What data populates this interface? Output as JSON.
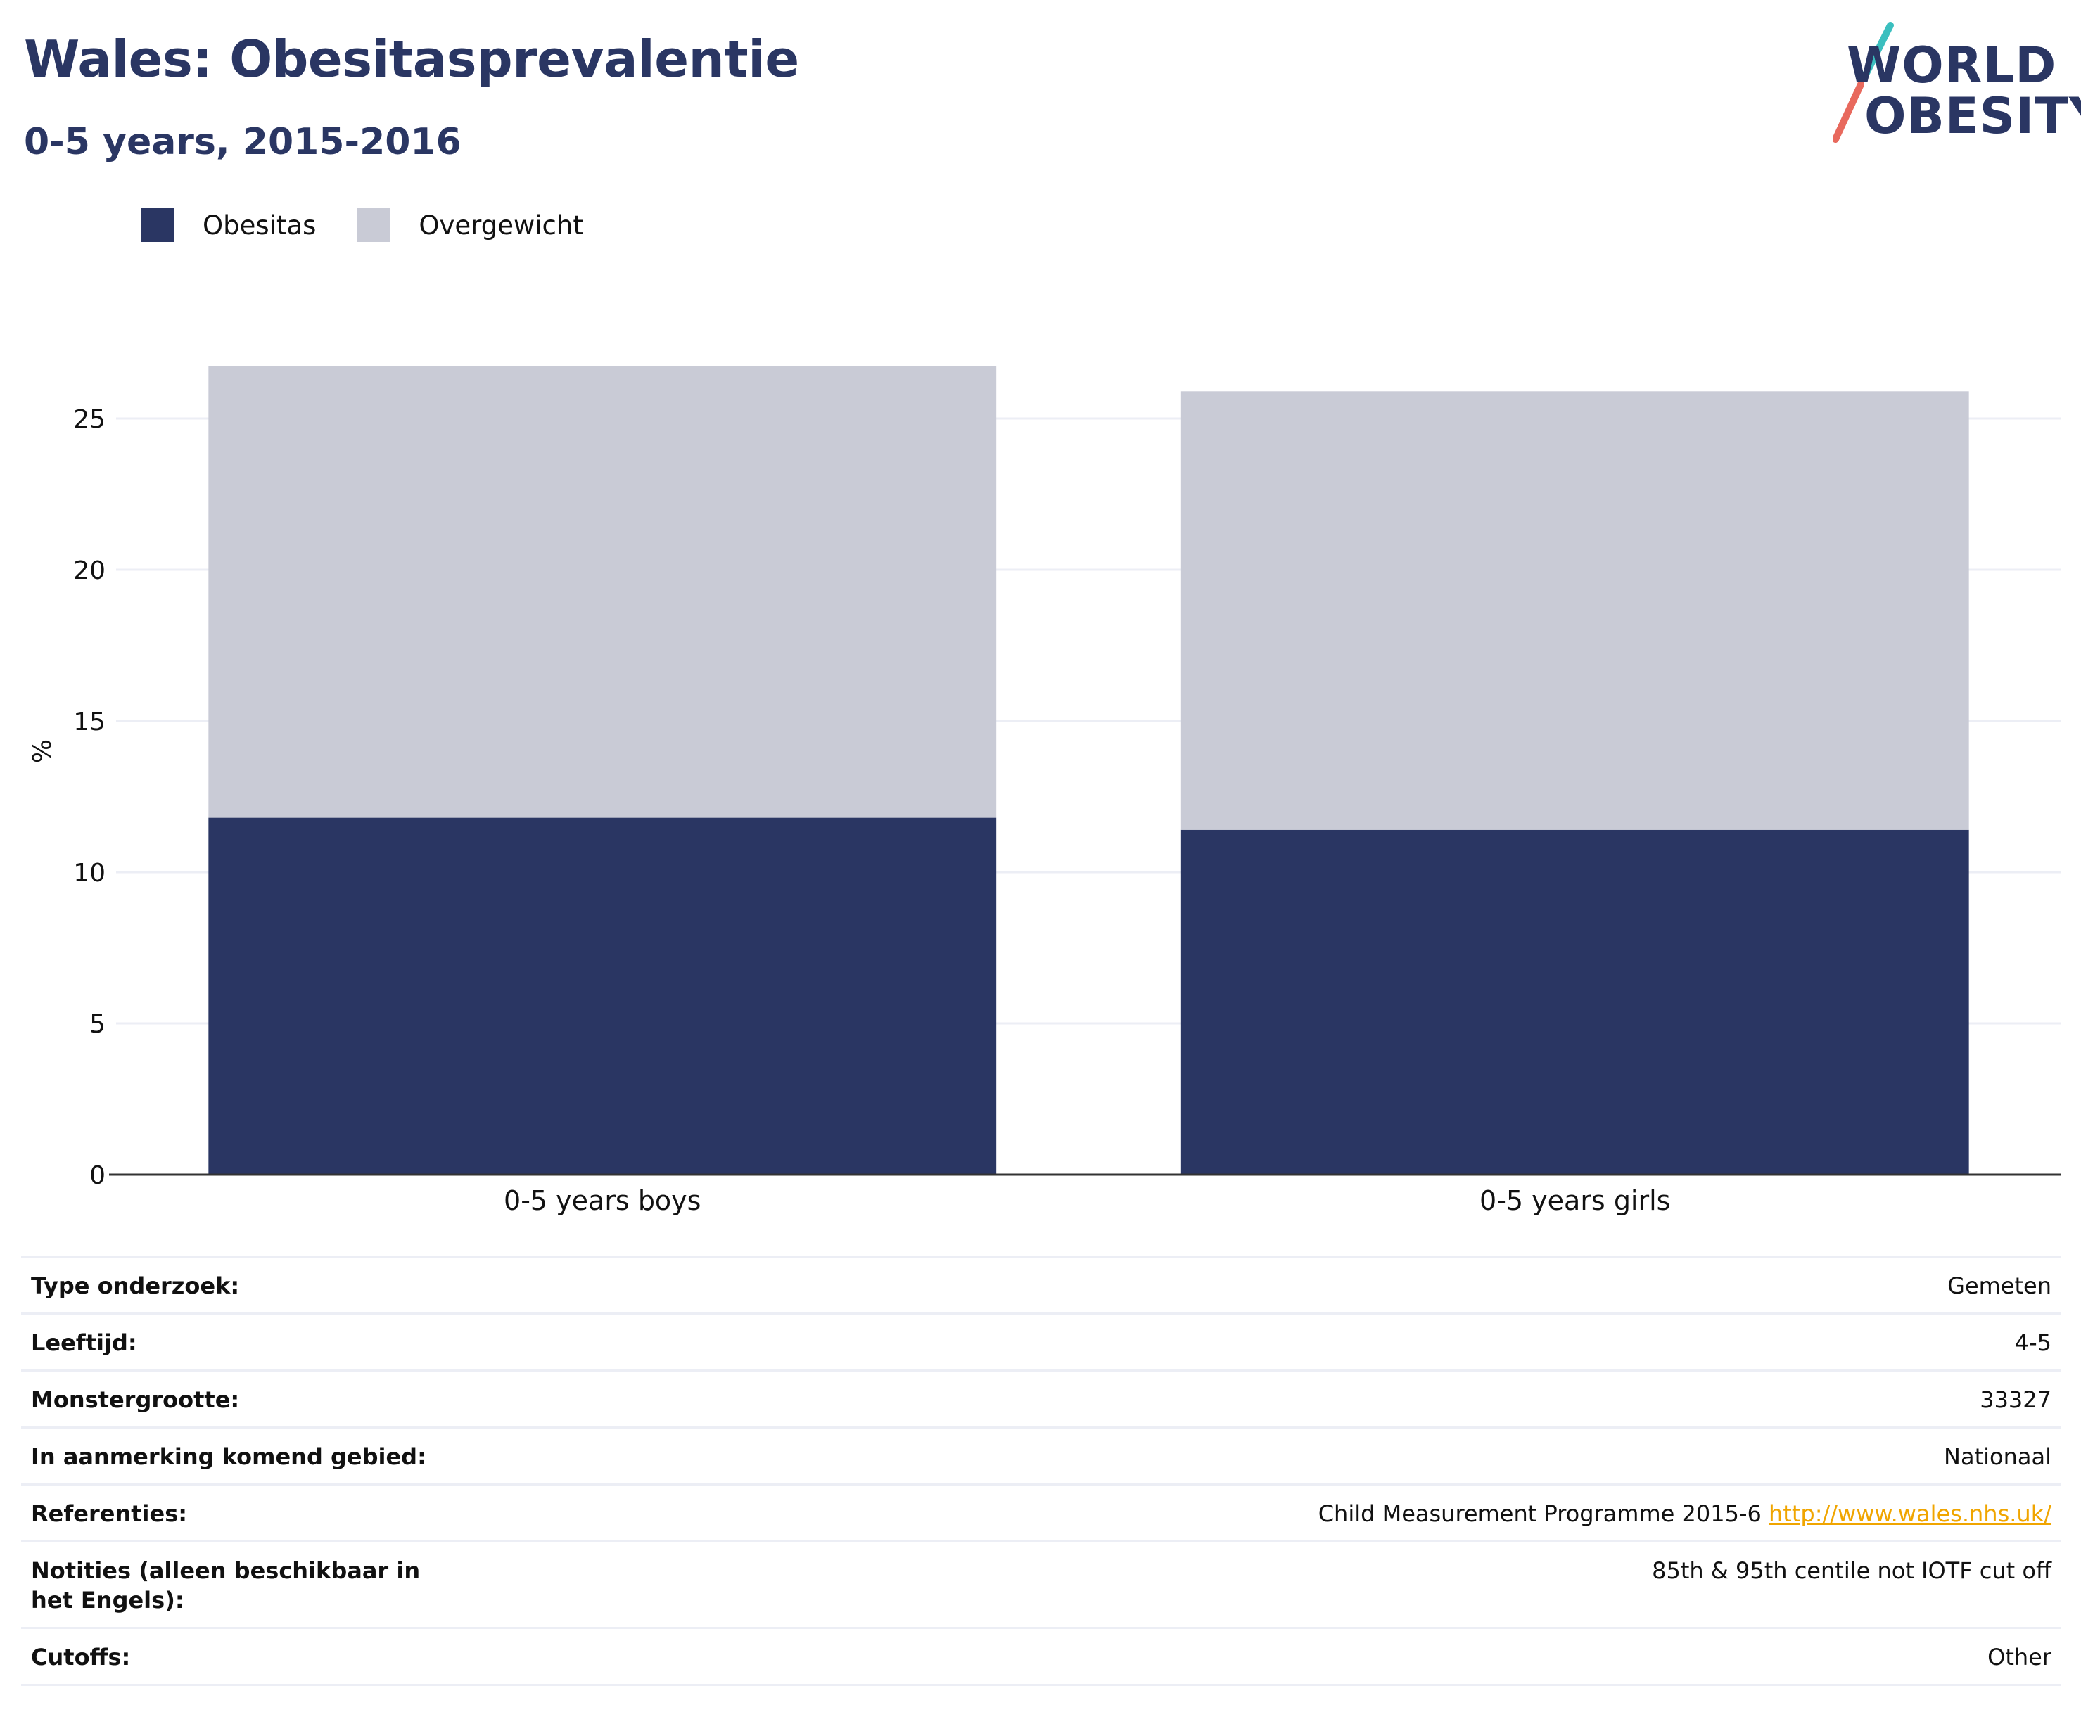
{
  "header": {
    "title": "Wales: Obesitasprevalentie",
    "subtitle": "0-5 years, 2015-2016"
  },
  "logo": {
    "line1": "WORLD",
    "line2": "OBESITY"
  },
  "legend": [
    {
      "label": "Obesitas",
      "color": "#2a3663"
    },
    {
      "label": "Overgewicht",
      "color": "#c9cbd6"
    }
  ],
  "chart_data": {
    "type": "bar",
    "stacked": true,
    "categories": [
      "0-5 years boys",
      "0-5 years girls"
    ],
    "series": [
      {
        "name": "Obesitas",
        "color": "#2a3663",
        "values": [
          11.8,
          11.4
        ]
      },
      {
        "name": "Overgewicht",
        "color": "#c9cbd6",
        "values": [
          15.1,
          14.5
        ]
      }
    ],
    "ylabel": "%",
    "ylim": [
      0,
      28
    ],
    "yticks": [
      0,
      5,
      10,
      15,
      20,
      25
    ],
    "grid": true,
    "legend_position": "top-left"
  },
  "info": [
    {
      "key": "Type onderzoek:",
      "value": "Gemeten"
    },
    {
      "key": "Leeftijd:",
      "value": "4-5"
    },
    {
      "key": "Monstergrootte:",
      "value": "33327"
    },
    {
      "key": "In aanmerking komend gebied:",
      "value": "Nationaal"
    },
    {
      "key": "Referenties:",
      "value": "Child Measurement Programme 2015-6",
      "link": "http://www.wales.nhs.uk/"
    },
    {
      "key": "Notities (alleen beschikbaar in het Engels):",
      "value": "85th & 95th centile not IOTF cut off"
    },
    {
      "key": "Cutoffs:",
      "value": "Other"
    }
  ]
}
